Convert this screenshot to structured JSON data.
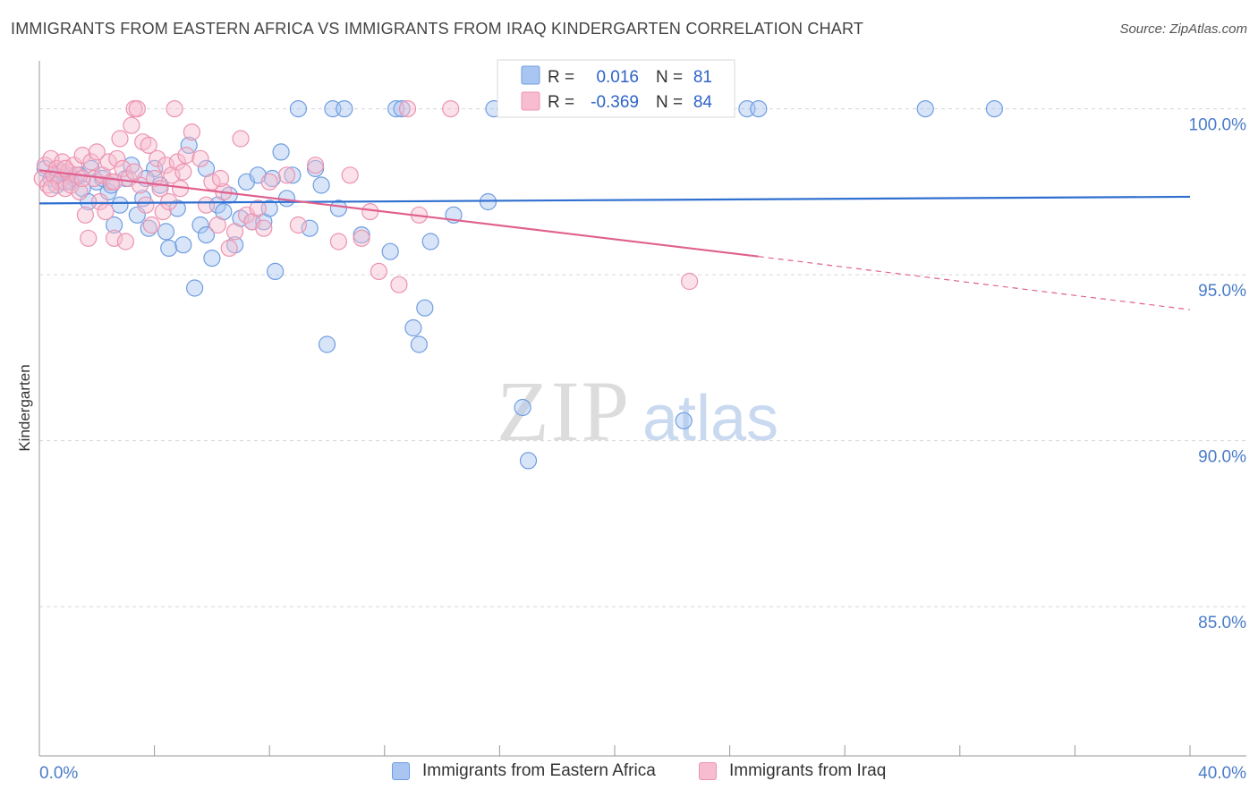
{
  "title": "IMMIGRANTS FROM EASTERN AFRICA VS IMMIGRANTS FROM IRAQ KINDERGARTEN CORRELATION CHART",
  "source": "Source: ZipAtlas.com",
  "watermark": {
    "zip": "ZIP",
    "atlas": "atlas"
  },
  "legend": {
    "r_label": "R =",
    "n_label": "N =",
    "items": [
      {
        "name": "Immigrants from Eastern Africa",
        "r": "0.016",
        "n": "81",
        "fill": "#a9c6f2",
        "stroke": "#6f9de0",
        "line": "#2f6fcf"
      },
      {
        "name": "Immigrants from Iraq",
        "r": "-0.369",
        "n": "84",
        "fill": "#f7bccf",
        "stroke": "#ec93b0",
        "line": "#e0608e"
      }
    ]
  },
  "chart_data": {
    "type": "scatter",
    "ylabel": "Kindergarten",
    "xlim": [
      0,
      40
    ],
    "ylim": [
      80.5,
      101.5
    ],
    "x_tick_labels": [
      "0.0%",
      "40.0%"
    ],
    "y_ticks": [
      {
        "value": 100,
        "label": "100.0%"
      },
      {
        "value": 95,
        "label": "95.0%"
      },
      {
        "value": 90,
        "label": "90.0%"
      },
      {
        "value": 85,
        "label": "85.0%"
      }
    ],
    "series": [
      {
        "name": "Immigrants from Eastern Africa",
        "points": [
          [
            0.2,
            98.2
          ],
          [
            0.4,
            97.9
          ],
          [
            0.5,
            98.0
          ],
          [
            0.6,
            97.7
          ],
          [
            0.8,
            98.1
          ],
          [
            0.9,
            97.8
          ],
          [
            1.0,
            98.0
          ],
          [
            1.2,
            97.9
          ],
          [
            1.4,
            98.0
          ],
          [
            1.5,
            97.6
          ],
          [
            1.7,
            97.2
          ],
          [
            1.8,
            98.2
          ],
          [
            2.0,
            97.8
          ],
          [
            2.2,
            97.9
          ],
          [
            2.4,
            97.5
          ],
          [
            2.6,
            96.5
          ],
          [
            2.8,
            97.1
          ],
          [
            3.0,
            97.9
          ],
          [
            3.2,
            98.3
          ],
          [
            3.4,
            96.8
          ],
          [
            3.6,
            97.3
          ],
          [
            3.8,
            96.4
          ],
          [
            4.0,
            98.2
          ],
          [
            4.2,
            97.7
          ],
          [
            4.4,
            96.3
          ],
          [
            4.5,
            95.8
          ],
          [
            4.8,
            97.0
          ],
          [
            5.0,
            95.9
          ],
          [
            5.2,
            98.9
          ],
          [
            5.4,
            94.6
          ],
          [
            5.6,
            96.5
          ],
          [
            5.8,
            98.2
          ],
          [
            6.0,
            95.5
          ],
          [
            6.2,
            97.1
          ],
          [
            6.4,
            96.9
          ],
          [
            6.6,
            97.4
          ],
          [
            6.8,
            95.9
          ],
          [
            7.0,
            96.7
          ],
          [
            7.2,
            97.8
          ],
          [
            7.4,
            96.6
          ],
          [
            7.6,
            98.0
          ],
          [
            7.8,
            96.6
          ],
          [
            8.0,
            97.0
          ],
          [
            8.2,
            95.1
          ],
          [
            8.4,
            98.7
          ],
          [
            8.6,
            97.3
          ],
          [
            8.8,
            98.0
          ],
          [
            9.0,
            100.0
          ],
          [
            9.4,
            96.4
          ],
          [
            9.6,
            98.2
          ],
          [
            9.8,
            97.7
          ],
          [
            10.0,
            92.9
          ],
          [
            10.2,
            100.0
          ],
          [
            10.4,
            97.0
          ],
          [
            10.6,
            100.0
          ],
          [
            11.2,
            96.2
          ],
          [
            12.2,
            95.7
          ],
          [
            12.4,
            100.0
          ],
          [
            12.6,
            100.0
          ],
          [
            13.0,
            93.4
          ],
          [
            13.2,
            92.9
          ],
          [
            13.4,
            94.0
          ],
          [
            13.6,
            96.0
          ],
          [
            14.4,
            96.8
          ],
          [
            15.6,
            97.2
          ],
          [
            15.8,
            100.0
          ],
          [
            16.2,
            100.0
          ],
          [
            16.8,
            91.0
          ],
          [
            17.0,
            89.4
          ],
          [
            22.4,
            90.6
          ],
          [
            23.0,
            100.0
          ],
          [
            23.2,
            100.0
          ],
          [
            24.6,
            100.0
          ],
          [
            25.0,
            100.0
          ],
          [
            30.8,
            100.0
          ],
          [
            33.2,
            100.0
          ],
          [
            3.7,
            97.9
          ],
          [
            5.8,
            96.2
          ],
          [
            1.1,
            97.8
          ],
          [
            8.1,
            97.9
          ],
          [
            2.5,
            97.7
          ]
        ]
      },
      {
        "name": "Immigrants from Iraq",
        "points": [
          [
            0.1,
            97.9
          ],
          [
            0.2,
            98.3
          ],
          [
            0.3,
            97.7
          ],
          [
            0.4,
            98.5
          ],
          [
            0.5,
            98.0
          ],
          [
            0.6,
            98.2
          ],
          [
            0.7,
            97.8
          ],
          [
            0.8,
            98.4
          ],
          [
            0.9,
            97.6
          ],
          [
            1.0,
            98.1
          ],
          [
            1.1,
            97.7
          ],
          [
            1.2,
            98.3
          ],
          [
            1.3,
            98.0
          ],
          [
            1.4,
            97.5
          ],
          [
            1.5,
            98.6
          ],
          [
            1.6,
            96.8
          ],
          [
            1.7,
            96.1
          ],
          [
            1.8,
            98.4
          ],
          [
            1.9,
            97.9
          ],
          [
            2.0,
            98.7
          ],
          [
            2.1,
            97.2
          ],
          [
            2.2,
            98.0
          ],
          [
            2.3,
            96.9
          ],
          [
            2.4,
            98.4
          ],
          [
            2.5,
            97.8
          ],
          [
            2.6,
            96.1
          ],
          [
            2.7,
            98.5
          ],
          [
            2.8,
            99.1
          ],
          [
            2.9,
            98.2
          ],
          [
            3.0,
            96.0
          ],
          [
            3.1,
            97.9
          ],
          [
            3.2,
            99.5
          ],
          [
            3.3,
            100.0
          ],
          [
            3.4,
            100.0
          ],
          [
            3.5,
            97.7
          ],
          [
            3.6,
            99.0
          ],
          [
            3.7,
            97.1
          ],
          [
            3.8,
            98.9
          ],
          [
            3.9,
            96.5
          ],
          [
            4.0,
            97.9
          ],
          [
            4.1,
            98.5
          ],
          [
            4.2,
            97.6
          ],
          [
            4.3,
            96.9
          ],
          [
            4.4,
            98.3
          ],
          [
            4.5,
            97.2
          ],
          [
            4.6,
            98.0
          ],
          [
            4.7,
            100.0
          ],
          [
            4.8,
            98.4
          ],
          [
            4.9,
            97.6
          ],
          [
            5.1,
            98.6
          ],
          [
            5.3,
            99.3
          ],
          [
            5.6,
            98.5
          ],
          [
            5.8,
            97.1
          ],
          [
            6.0,
            97.8
          ],
          [
            6.2,
            96.5
          ],
          [
            6.4,
            97.5
          ],
          [
            6.6,
            95.8
          ],
          [
            6.8,
            96.3
          ],
          [
            7.0,
            99.1
          ],
          [
            7.2,
            96.8
          ],
          [
            7.4,
            96.6
          ],
          [
            7.6,
            97.0
          ],
          [
            7.8,
            96.4
          ],
          [
            8.0,
            97.8
          ],
          [
            8.6,
            98.0
          ],
          [
            9.0,
            96.5
          ],
          [
            9.6,
            98.3
          ],
          [
            10.4,
            96.0
          ],
          [
            10.8,
            98.0
          ],
          [
            11.2,
            96.1
          ],
          [
            11.5,
            96.9
          ],
          [
            11.8,
            95.1
          ],
          [
            12.5,
            94.7
          ],
          [
            12.8,
            100.0
          ],
          [
            13.2,
            96.8
          ],
          [
            14.3,
            100.0
          ],
          [
            22.6,
            94.8
          ],
          [
            0.9,
            98.2
          ],
          [
            1.5,
            97.9
          ],
          [
            2.6,
            97.8
          ],
          [
            3.3,
            98.1
          ],
          [
            0.4,
            97.6
          ],
          [
            5.0,
            98.1
          ],
          [
            6.3,
            97.9
          ]
        ]
      }
    ],
    "trendlines": [
      {
        "series": "Immigrants from Eastern Africa",
        "x": [
          0,
          40
        ],
        "y": [
          97.15,
          97.35
        ],
        "style": "solid"
      },
      {
        "series": "Immigrants from Iraq",
        "x": [
          0,
          25
        ],
        "y": [
          98.15,
          95.55
        ],
        "style": "solid"
      },
      {
        "series": "Immigrants from Iraq",
        "x": [
          25,
          40
        ],
        "y": [
          95.55,
          93.95
        ],
        "style": "dashed"
      }
    ],
    "grid": true,
    "legend_position": "top-center"
  }
}
